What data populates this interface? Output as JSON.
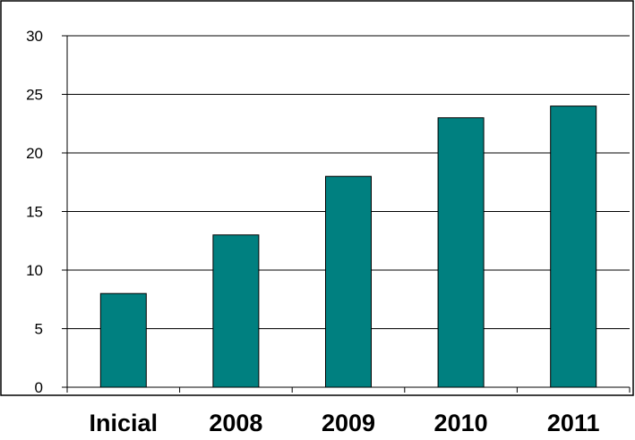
{
  "chart_data": {
    "type": "bar",
    "categories": [
      "Inicial",
      "2008",
      "2009",
      "2010",
      "2011"
    ],
    "values": [
      8,
      13,
      18,
      23,
      24
    ],
    "ylim": [
      0,
      30
    ],
    "yticks": [
      0,
      5,
      10,
      15,
      20,
      25,
      30
    ],
    "grid": true,
    "legend": "none",
    "title": "",
    "xlabel": "",
    "ylabel": "",
    "colors": {
      "bar": "#008080",
      "bar_stroke": "#000000",
      "grid": "#000000",
      "background": "#ffffff"
    }
  }
}
